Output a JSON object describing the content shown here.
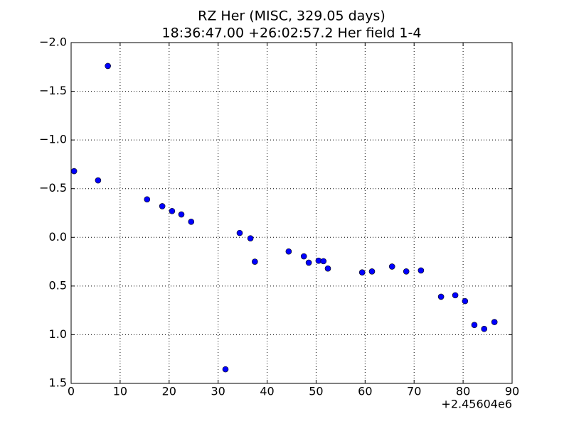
{
  "chart_data": {
    "type": "scatter",
    "title": "RZ Her (MISC, 329.05 days)",
    "subtitle": "18:36:47.00 +26:02:57.2 Her field 1-4",
    "x_offset_label": "+2.45604e6",
    "series": [
      {
        "color": "#0000ff",
        "x": [
          0.6,
          5.5,
          7.5,
          15.5,
          18.6,
          20.6,
          22.5,
          24.5,
          31.5,
          34.4,
          36.6,
          37.5,
          44.4,
          47.5,
          48.5,
          50.5,
          51.5,
          52.4,
          59.4,
          61.4,
          65.5,
          68.4,
          71.4,
          75.5,
          78.4,
          80.4,
          82.3,
          84.3,
          86.4
        ],
        "values": [
          -0.68,
          -0.585,
          -1.76,
          -0.39,
          -0.32,
          -0.27,
          -0.235,
          -0.16,
          1.355,
          -0.045,
          0.01,
          0.25,
          0.145,
          0.195,
          0.26,
          0.24,
          0.245,
          0.32,
          0.36,
          0.35,
          0.3,
          0.35,
          0.34,
          0.61,
          0.595,
          0.655,
          0.9,
          0.94,
          0.87
        ],
        "errors": [
          0.02,
          0.02,
          0.03,
          0.02,
          0.02,
          0.02,
          0.02,
          0.02,
          0.02,
          0.02,
          0.02,
          0.02,
          0.02,
          0.02,
          0.02,
          0.02,
          0.02,
          0.02,
          0.02,
          0.02,
          0.02,
          0.02,
          0.02,
          0.02,
          0.02,
          0.02,
          0.02,
          0.02,
          0.02
        ]
      }
    ],
    "xlim": [
      0,
      90
    ],
    "xticks": [
      0,
      10,
      20,
      30,
      40,
      50,
      60,
      70,
      80,
      90
    ],
    "ylim": [
      1.5,
      -2.0
    ],
    "yticks": [
      {
        "value": -2.0,
        "label": "−2.0"
      },
      {
        "value": -1.5,
        "label": "−1.5"
      },
      {
        "value": -1.0,
        "label": "−1.0"
      },
      {
        "value": -0.5,
        "label": "−0.5"
      },
      {
        "value": 0,
        "label": "0.0"
      },
      0.5,
      {
        "value": 1.0,
        "label": "1.0"
      },
      1.5
    ],
    "grid": true
  }
}
